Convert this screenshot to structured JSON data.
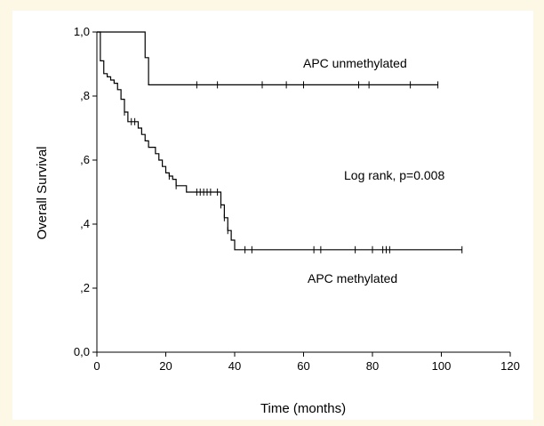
{
  "chart_data": {
    "type": "line",
    "xlabel": "Time (months)",
    "ylabel": "Overall Survival",
    "xlim": [
      0,
      120
    ],
    "ylim": [
      0.0,
      1.0
    ],
    "x_ticks": [
      "0",
      "20",
      "40",
      "60",
      "80",
      "100",
      "120"
    ],
    "y_ticks": [
      "0,0",
      ",2",
      ",4",
      ",6",
      ",8",
      "1,0"
    ],
    "grid": false,
    "annotations": [
      "APC unmethylated",
      "APC methylated",
      "Log rank, p=0.008"
    ],
    "series": [
      {
        "name": "APC unmethylated",
        "steps": [
          [
            0,
            1.0
          ],
          [
            14,
            0.92
          ],
          [
            15,
            0.835
          ]
        ],
        "end_x": 99,
        "censored": [
          29,
          35,
          48,
          55,
          60,
          76,
          79,
          91,
          99
        ]
      },
      {
        "name": "APC methylated",
        "steps": [
          [
            0,
            1.0
          ],
          [
            1,
            0.91
          ],
          [
            2,
            0.87
          ],
          [
            3,
            0.86
          ],
          [
            4,
            0.85
          ],
          [
            5,
            0.84
          ],
          [
            6,
            0.82
          ],
          [
            7,
            0.79
          ],
          [
            8,
            0.75
          ],
          [
            9,
            0.72
          ],
          [
            12,
            0.7
          ],
          [
            13,
            0.68
          ],
          [
            14,
            0.66
          ],
          [
            15,
            0.64
          ],
          [
            17,
            0.62
          ],
          [
            18,
            0.6
          ],
          [
            19,
            0.58
          ],
          [
            20,
            0.56
          ],
          [
            21,
            0.55
          ],
          [
            22,
            0.54
          ],
          [
            23,
            0.52
          ],
          [
            26,
            0.5
          ],
          [
            36,
            0.46
          ],
          [
            37,
            0.42
          ],
          [
            38,
            0.38
          ],
          [
            39,
            0.35
          ],
          [
            40,
            0.32
          ]
        ],
        "end_x": 106,
        "censored": [
          8,
          10,
          11,
          21,
          23,
          29,
          30,
          31,
          32,
          33,
          35,
          36,
          37,
          38,
          43,
          45,
          63,
          65,
          75,
          80,
          83,
          84,
          85,
          106
        ]
      }
    ]
  }
}
